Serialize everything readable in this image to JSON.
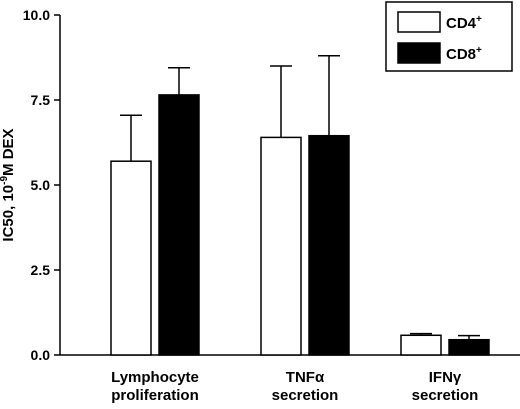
{
  "chart_data": {
    "type": "bar",
    "title": "",
    "xlabel": "",
    "ylabel": {
      "prefix": "IC50,  10",
      "sup": "-9",
      "suffix": "M DEX"
    },
    "ylim": [
      0,
      10
    ],
    "yticks": [
      "0.0",
      "2.5",
      "5.0",
      "7.5",
      "10.0"
    ],
    "ytick_values": [
      0,
      2.5,
      5,
      7.5,
      10
    ],
    "grid": false,
    "legend_position": "top-right",
    "categories": [
      {
        "line1": "Lymphocyte",
        "line2": "proliferation"
      },
      {
        "line1": "TNFα",
        "line2": "secretion"
      },
      {
        "line1": "IFNγ",
        "line2": "secretion"
      }
    ],
    "series": [
      {
        "name": "CD4",
        "sup": "+",
        "fill": "#ffffff",
        "values": [
          5.7,
          6.4,
          0.58
        ],
        "errors": [
          1.35,
          2.1,
          0.05
        ]
      },
      {
        "name": "CD8",
        "sup": "+",
        "fill": "#000000",
        "values": [
          7.65,
          6.45,
          0.45
        ],
        "errors": [
          0.8,
          2.35,
          0.12
        ]
      }
    ]
  }
}
